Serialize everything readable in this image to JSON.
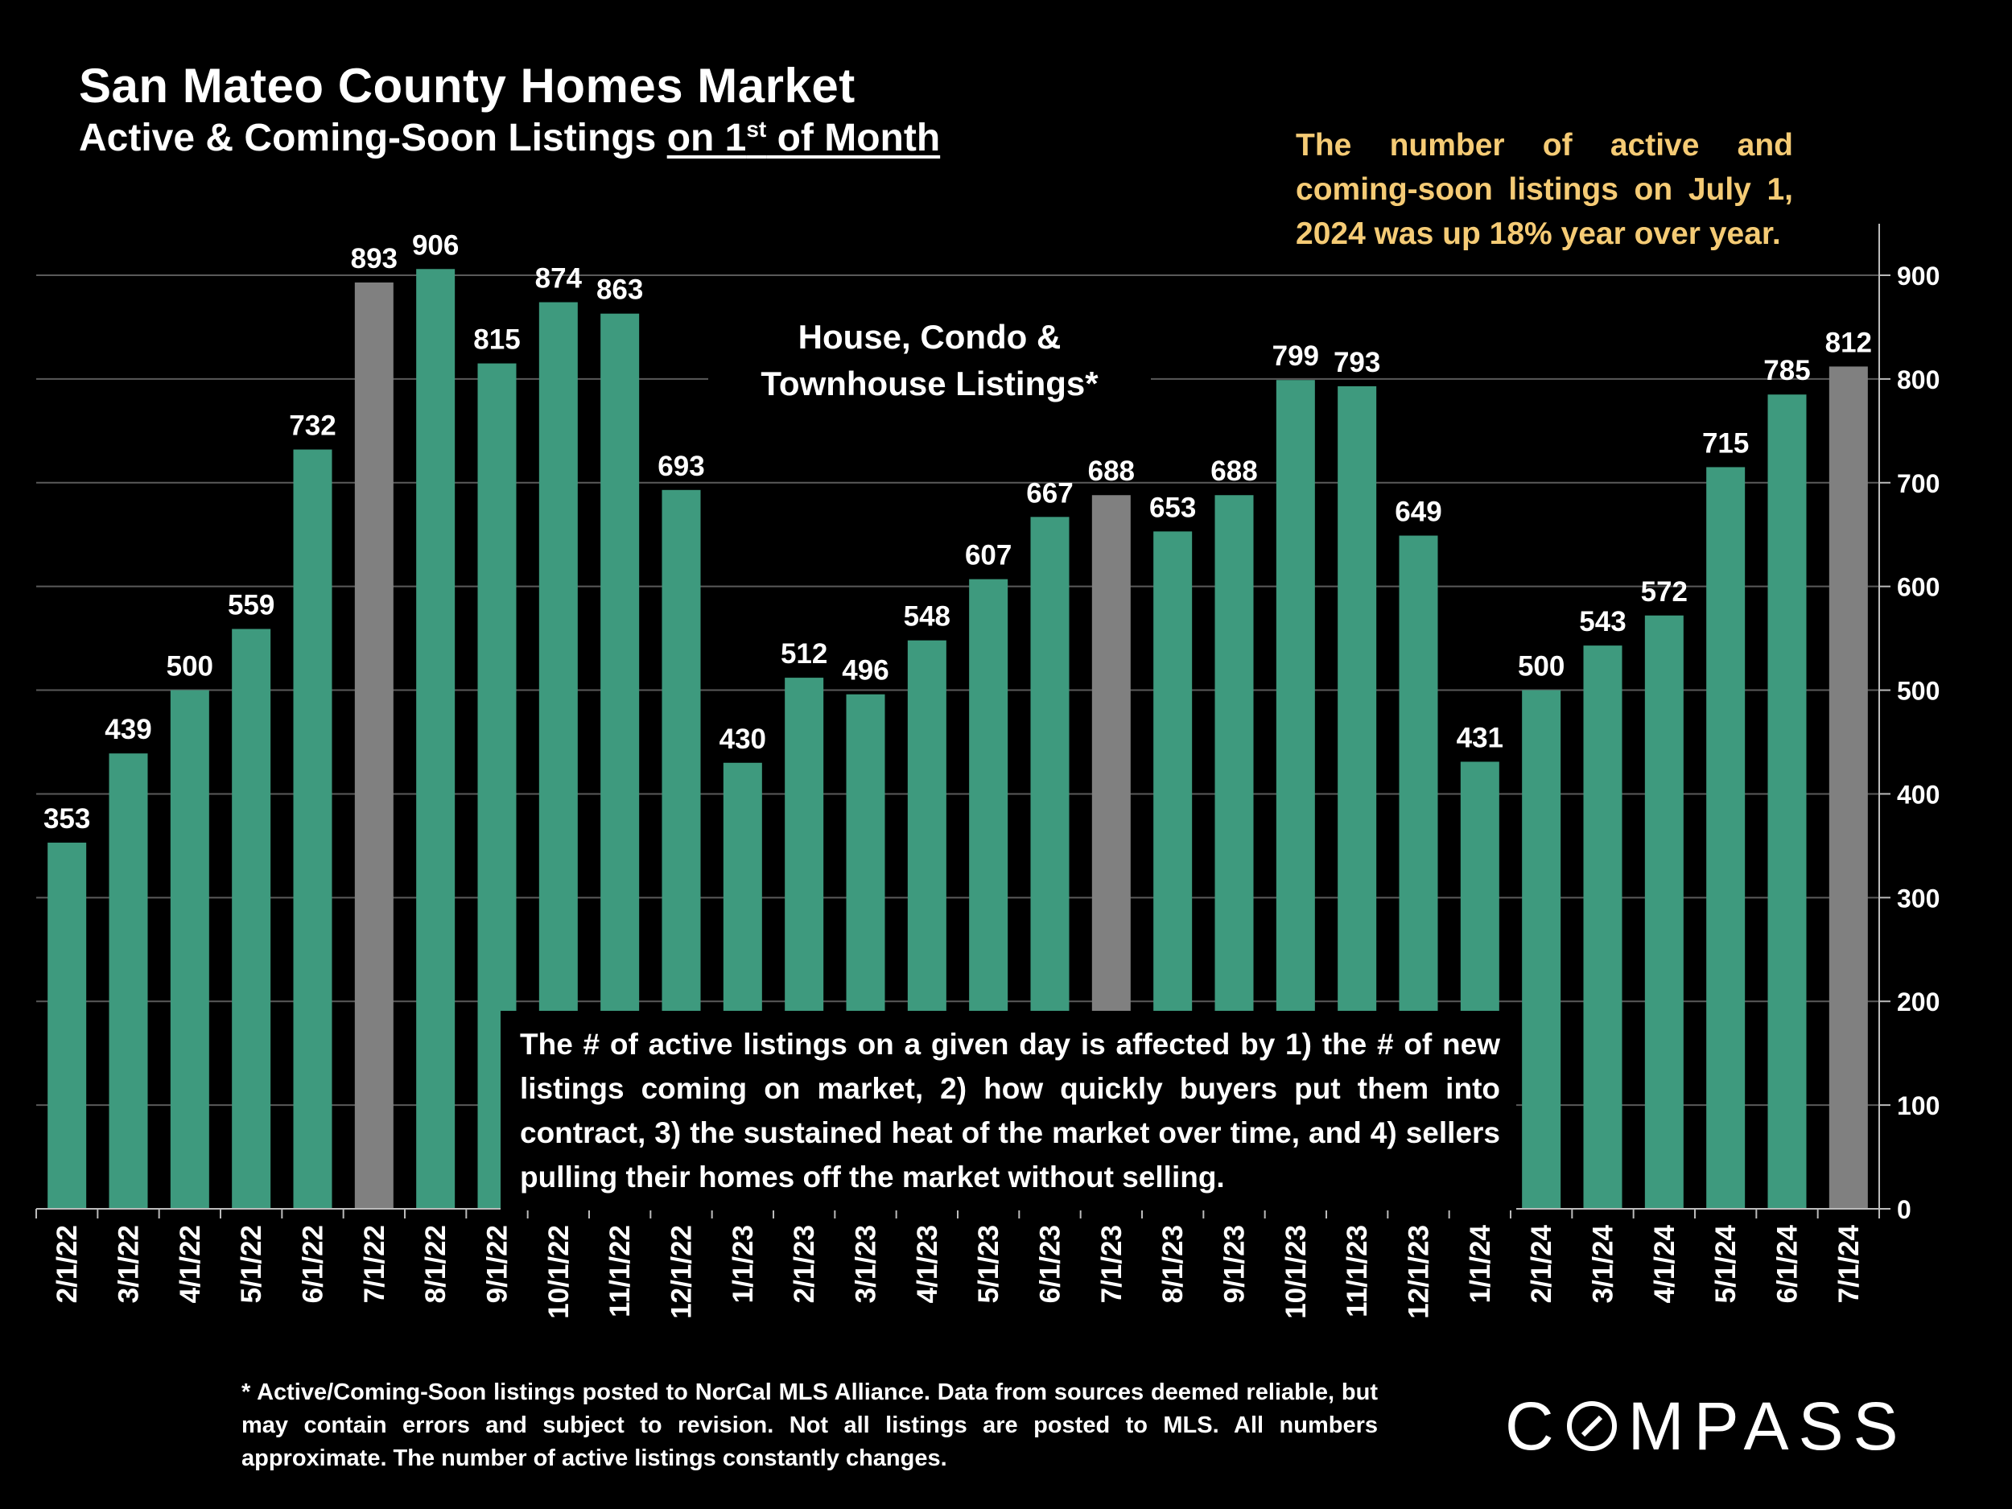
{
  "page": {
    "title": "San Mateo County Homes Market",
    "subtitle_prefix": "Active & Coming-Soon Listings ",
    "subtitle_underlined_pre": "on 1",
    "subtitle_sup": "st",
    "subtitle_underlined_post": " of Month",
    "callout": "The number of active and coming-soon listings on July 1, 2024 was up 18% year over year.",
    "series_label": "House, Condo & Townhouse Listings*",
    "note": "The # of active listings on a given day is affected by 1) the # of new listings coming on market, 2) how quickly buyers put them into contract, 3) the sustained heat of the market over time, and 4) sellers pulling their homes off the market without selling.",
    "footnote": "* Active/Coming-Soon listings posted to NorCal MLS Alliance. Data from sources deemed reliable, but may contain errors and subject to revision. Not all listings are posted to MLS. All numbers approximate. The number of active listings constantly changes.",
    "logo_left": "C",
    "logo_right": "MPASS"
  },
  "colors": {
    "bar_default": "#3e9a7e",
    "bar_highlight": "#808080",
    "callout_text": "#f5cb75",
    "gridline": "#5a5a5a"
  },
  "chart_data": {
    "type": "bar",
    "categories": [
      "2/1/22",
      "3/1/22",
      "4/1/22",
      "5/1/22",
      "6/1/22",
      "7/1/22",
      "8/1/22",
      "9/1/22",
      "10/1/22",
      "11/1/22",
      "12/1/22",
      "1/1/23",
      "2/1/23",
      "3/1/23",
      "4/1/23",
      "5/1/23",
      "6/1/23",
      "7/1/23",
      "8/1/23",
      "9/1/23",
      "10/1/23",
      "11/1/23",
      "12/1/23",
      "1/1/24",
      "2/1/24",
      "3/1/24",
      "4/1/24",
      "5/1/24",
      "6/1/24",
      "7/1/24"
    ],
    "values": [
      353,
      439,
      500,
      559,
      732,
      893,
      906,
      815,
      874,
      863,
      693,
      430,
      512,
      496,
      548,
      607,
      667,
      688,
      653,
      688,
      799,
      793,
      649,
      431,
      500,
      543,
      572,
      715,
      785,
      812
    ],
    "highlighted_categories": [
      "7/1/22",
      "7/1/23",
      "7/1/24"
    ],
    "ylim": [
      0,
      900
    ],
    "yticks": [
      0,
      100,
      200,
      300,
      400,
      500,
      600,
      700,
      800,
      900
    ],
    "y_axis_side": "right",
    "grid": true,
    "data_labels": true
  }
}
